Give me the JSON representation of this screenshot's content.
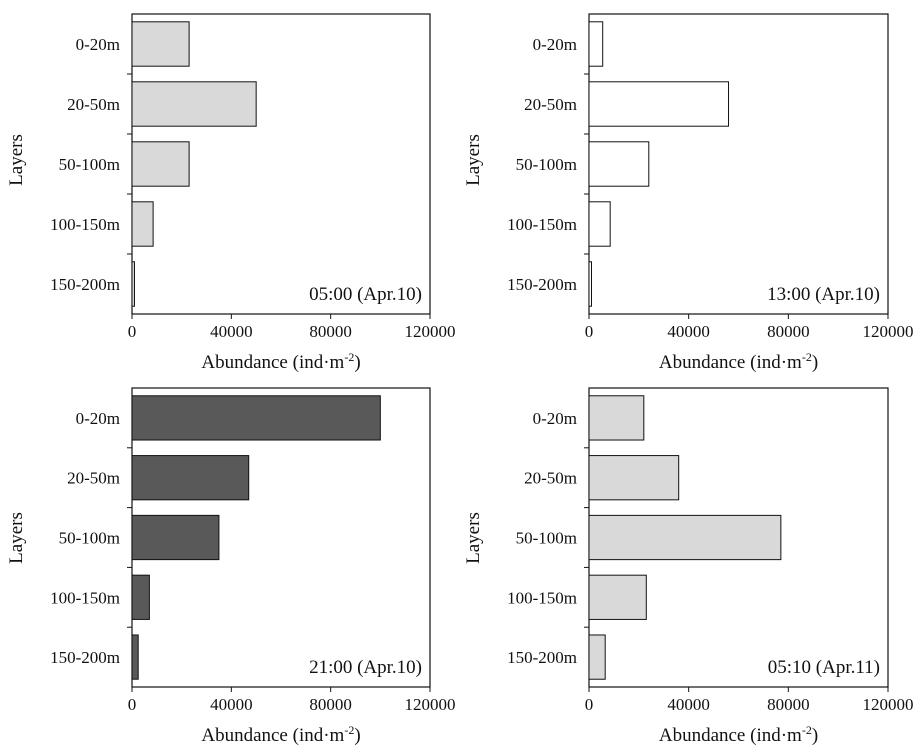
{
  "chart_data": [
    {
      "type": "bar",
      "orientation": "horizontal",
      "categories": [
        "0-20m",
        "20-50m",
        "50-100m",
        "100-150m",
        "150-200m"
      ],
      "values": [
        23000,
        50000,
        23000,
        8500,
        1000
      ],
      "annotation": "05:00 (Apr.10)",
      "xlabel": "Abundance (ind·m",
      "xlabel_sup": "-2",
      "xlabel_close": ")",
      "ylabel": "Layers",
      "xlim": [
        0,
        120000
      ],
      "xticks": [
        "0",
        "40000",
        "80000",
        "120000"
      ],
      "bar_color": "#d9d9d9"
    },
    {
      "type": "bar",
      "orientation": "horizontal",
      "categories": [
        "0-20m",
        "20-50m",
        "50-100m",
        "100-150m",
        "150-200m"
      ],
      "values": [
        5500,
        56000,
        24000,
        8500,
        1000
      ],
      "annotation": "13:00 (Apr.10)",
      "xlabel": "Abundance (ind·m",
      "xlabel_sup": "-2",
      "xlabel_close": ")",
      "ylabel": "Layers",
      "xlim": [
        0,
        120000
      ],
      "xticks": [
        "0",
        "40000",
        "80000",
        "120000"
      ],
      "bar_color": "#ffffff"
    },
    {
      "type": "bar",
      "orientation": "horizontal",
      "categories": [
        "0-20m",
        "20-50m",
        "50-100m",
        "100-150m",
        "150-200m"
      ],
      "values": [
        100000,
        47000,
        35000,
        7000,
        2500
      ],
      "annotation": "21:00 (Apr.10)",
      "xlabel": "Abundance (ind·m",
      "xlabel_sup": "-2",
      "xlabel_close": ")",
      "ylabel": "Layers",
      "xlim": [
        0,
        120000
      ],
      "xticks": [
        "0",
        "40000",
        "80000",
        "120000"
      ],
      "bar_color": "#595959"
    },
    {
      "type": "bar",
      "orientation": "horizontal",
      "categories": [
        "0-20m",
        "20-50m",
        "50-100m",
        "100-150m",
        "150-200m"
      ],
      "values": [
        22000,
        36000,
        77000,
        23000,
        6500
      ],
      "annotation": "05:10 (Apr.11)",
      "xlabel": "Abundance (ind·m",
      "xlabel_sup": "-2",
      "xlabel_close": ")",
      "ylabel": "Layers",
      "xlim": [
        0,
        120000
      ],
      "xticks": [
        "0",
        "40000",
        "80000",
        "120000"
      ],
      "bar_color": "#d9d9d9"
    }
  ]
}
